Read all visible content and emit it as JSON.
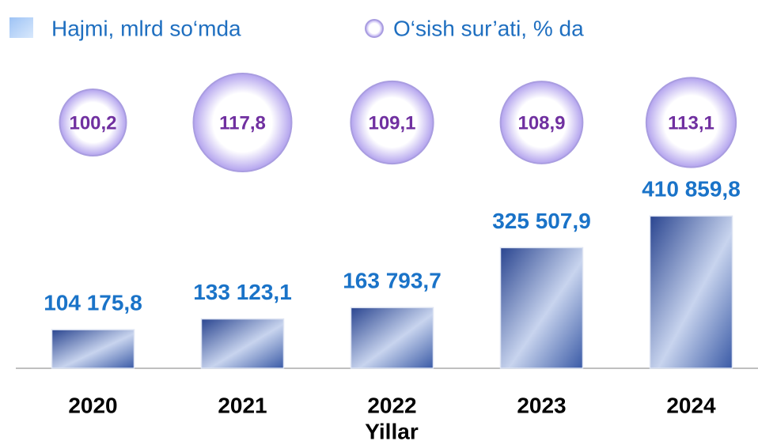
{
  "chart_data": {
    "type": "bar",
    "categories": [
      "2020",
      "2021",
      "2022",
      "2023",
      "2024"
    ],
    "x_label": "Yillar",
    "series": [
      {
        "name": "Hajmi, mlrd so‘mda",
        "type": "bar",
        "color": "#2f4f9e",
        "values": [
          104175.8,
          133123.1,
          163793.7,
          325507.9,
          410859.8
        ],
        "value_labels": [
          "104 175,8",
          "133 123,1",
          "163 793,7",
          "325 507,9",
          "410 859,8"
        ]
      },
      {
        "name": "O‘sish sur’ati, % da",
        "type": "bubble",
        "color": "#b3a3ee",
        "values": [
          100.2,
          117.8,
          109.1,
          108.9,
          113.1
        ],
        "value_labels": [
          "100,2",
          "117,8",
          "109,1",
          "108,9",
          "113,1"
        ]
      }
    ],
    "ylim": [
      0,
      450000
    ]
  }
}
